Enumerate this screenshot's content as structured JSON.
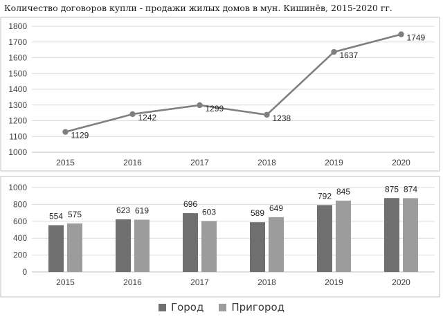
{
  "title": "Количество договоров купли - продажи жилых домов в мун. Кишинёв, 2015-2020 гг.",
  "chart_data": [
    {
      "type": "line",
      "categories": [
        "2015",
        "2016",
        "2017",
        "2018",
        "2019",
        "2020"
      ],
      "series": [
        {
          "values": [
            1129,
            1242,
            1299,
            1238,
            1637,
            1749
          ],
          "color": "#7f7f7f"
        }
      ],
      "data_labels": [
        "1129",
        "1242",
        "1299",
        "1238",
        "1637",
        "1749"
      ],
      "ylim": [
        1000,
        1800
      ],
      "yticks": [
        "1000",
        "1100",
        "1200",
        "1300",
        "1400",
        "1500",
        "1600",
        "1700",
        "1800"
      ],
      "grid": true,
      "xlabel": "",
      "ylabel": ""
    },
    {
      "type": "bar",
      "categories": [
        "2015",
        "2016",
        "2017",
        "2018",
        "2019",
        "2020"
      ],
      "series": [
        {
          "name": "Город",
          "values": [
            554,
            623,
            696,
            589,
            792,
            875
          ],
          "color": "#6f6f6f"
        },
        {
          "name": "Пригород",
          "values": [
            575,
            619,
            603,
            649,
            845,
            874
          ],
          "color": "#9c9c9c"
        }
      ],
      "ylim": [
        0,
        1000
      ],
      "yticks": [
        "0",
        "200",
        "400",
        "600",
        "800",
        "1000"
      ],
      "grid": true,
      "legend": "bottom",
      "xlabel": "",
      "ylabel": ""
    }
  ]
}
